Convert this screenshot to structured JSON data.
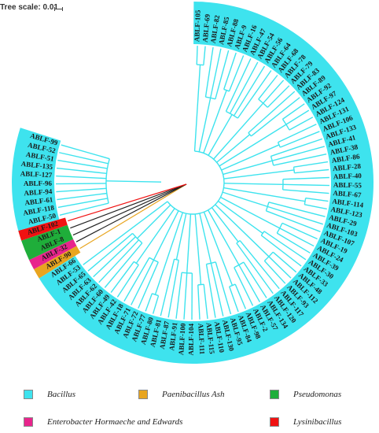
{
  "header": {
    "tree_scale_label": "Tree scale: 0.01"
  },
  "colors": {
    "Bacillus": "#3ee3ee",
    "Paenibacillus Ash": "#e8a51f",
    "Pseudomonas": "#1fae3a",
    "Enterobacter Hormaeche and Edwards": "#e8248c",
    "Lysinibacillus": "#f01212"
  },
  "leaves": [
    {
      "label": "ABLF-105",
      "group": "Bacillus"
    },
    {
      "label": "ABLF-69",
      "group": "Bacillus"
    },
    {
      "label": "ABLF-82",
      "group": "Bacillus"
    },
    {
      "label": "ABLF-85",
      "group": "Bacillus"
    },
    {
      "label": "ABLF-88",
      "group": "Bacillus"
    },
    {
      "label": "ABLF-9",
      "group": "Bacillus"
    },
    {
      "label": "ABLF-16",
      "group": "Bacillus"
    },
    {
      "label": "ABLF-47",
      "group": "Bacillus"
    },
    {
      "label": "ABLF-54",
      "group": "Bacillus"
    },
    {
      "label": "ABLF-56",
      "group": "Bacillus"
    },
    {
      "label": "ABLF-64",
      "group": "Bacillus"
    },
    {
      "label": "ABLF-68",
      "group": "Bacillus"
    },
    {
      "label": "ABLF-78",
      "group": "Bacillus"
    },
    {
      "label": "ABLF-79",
      "group": "Bacillus"
    },
    {
      "label": "ABLF-83",
      "group": "Bacillus"
    },
    {
      "label": "ABLF-89",
      "group": "Bacillus"
    },
    {
      "label": "ABLF-92",
      "group": "Bacillus"
    },
    {
      "label": "ABLF-97",
      "group": "Bacillus"
    },
    {
      "label": "ABLF-124",
      "group": "Bacillus"
    },
    {
      "label": "ABLF-131",
      "group": "Bacillus"
    },
    {
      "label": "ABLF-106",
      "group": "Bacillus"
    },
    {
      "label": "ABLF-133",
      "group": "Bacillus"
    },
    {
      "label": "ABLF-41",
      "group": "Bacillus"
    },
    {
      "label": "ABLF-38",
      "group": "Bacillus"
    },
    {
      "label": "ABLF-86",
      "group": "Bacillus"
    },
    {
      "label": "ABLF-28",
      "group": "Bacillus"
    },
    {
      "label": "ABLF-40",
      "group": "Bacillus"
    },
    {
      "label": "ABLF-55",
      "group": "Bacillus"
    },
    {
      "label": "ABLF-67",
      "group": "Bacillus"
    },
    {
      "label": "ABLF-114",
      "group": "Bacillus"
    },
    {
      "label": "ABLF-123",
      "group": "Bacillus"
    },
    {
      "label": "ABLF-29",
      "group": "Bacillus"
    },
    {
      "label": "ABLF-103",
      "group": "Bacillus"
    },
    {
      "label": "ABLF-107",
      "group": "Bacillus"
    },
    {
      "label": "ABLF-19",
      "group": "Bacillus"
    },
    {
      "label": "ABLF-24",
      "group": "Bacillus"
    },
    {
      "label": "ABLF-39",
      "group": "Bacillus"
    },
    {
      "label": "ABLF-30",
      "group": "Bacillus"
    },
    {
      "label": "ABLF-33",
      "group": "Bacillus"
    },
    {
      "label": "ABLF-48",
      "group": "Bacillus"
    },
    {
      "label": "ABLF-112",
      "group": "Bacillus"
    },
    {
      "label": "ABLF-93",
      "group": "Bacillus"
    },
    {
      "label": "ABLF-117",
      "group": "Bacillus"
    },
    {
      "label": "ABLF-120",
      "group": "Bacillus"
    },
    {
      "label": "ABLF-134",
      "group": "Bacillus"
    },
    {
      "label": "ABLF-57",
      "group": "Bacillus"
    },
    {
      "label": "ABLF-2",
      "group": "Bacillus"
    },
    {
      "label": "ABLF-98",
      "group": "Bacillus"
    },
    {
      "label": "ABLF-84",
      "group": "Bacillus"
    },
    {
      "label": "ABLF-95",
      "group": "Bacillus"
    },
    {
      "label": "ABLF-130",
      "group": "Bacillus"
    },
    {
      "label": "ABLF-110",
      "group": "Bacillus"
    },
    {
      "label": "ABLF-115",
      "group": "Bacillus"
    },
    {
      "label": "ABLF-111",
      "group": "Bacillus"
    },
    {
      "label": "ABLF-104",
      "group": "Bacillus"
    },
    {
      "label": "ABLF-100",
      "group": "Bacillus"
    },
    {
      "label": "ABLF-91",
      "group": "Bacillus"
    },
    {
      "label": "ABLF-87",
      "group": "Bacillus"
    },
    {
      "label": "ABLF-81",
      "group": "Bacillus"
    },
    {
      "label": "ABLF-80",
      "group": "Bacillus"
    },
    {
      "label": "ABLF-77",
      "group": "Bacillus"
    },
    {
      "label": "ABLF-72",
      "group": "Bacillus"
    },
    {
      "label": "ABLF-71",
      "group": "Bacillus"
    },
    {
      "label": "ABLF-18",
      "group": "Bacillus"
    },
    {
      "label": "ABLF-42",
      "group": "Bacillus"
    },
    {
      "label": "ABLF-49",
      "group": "Bacillus"
    },
    {
      "label": "ABLF-60",
      "group": "Bacillus"
    },
    {
      "label": "ABLF-62",
      "group": "Bacillus"
    },
    {
      "label": "ABLF-63",
      "group": "Bacillus"
    },
    {
      "label": "ABLF-65",
      "group": "Bacillus"
    },
    {
      "label": "ABLF-53",
      "group": "Bacillus"
    },
    {
      "label": "ABLF-66",
      "group": "Bacillus"
    },
    {
      "label": "ABLF-90",
      "group": "Paenibacillus Ash"
    },
    {
      "label": "ABLF-32",
      "group": "Enterobacter Hormaeche and Edwards"
    },
    {
      "label": "ABLF-8",
      "group": "Pseudomonas"
    },
    {
      "label": "ABLF-1",
      "group": "Pseudomonas"
    },
    {
      "label": "ABLF-102",
      "group": "Lysinibacillus"
    },
    {
      "label": "ABLF-50",
      "group": "Bacillus"
    },
    {
      "label": "ABLF-118",
      "group": "Bacillus"
    },
    {
      "label": "ABLF-61",
      "group": "Bacillus"
    },
    {
      "label": "ABLF-94",
      "group": "Bacillus"
    },
    {
      "label": "ABLF-96",
      "group": "Bacillus"
    },
    {
      "label": "ABLF-127",
      "group": "Bacillus"
    },
    {
      "label": "ABLF-135",
      "group": "Bacillus"
    },
    {
      "label": "ABLF-51",
      "group": "Bacillus"
    },
    {
      "label": "ABLF-52",
      "group": "Bacillus"
    },
    {
      "label": "ABLF-99",
      "group": "Bacillus"
    }
  ],
  "legend": [
    {
      "label": "Bacillus",
      "group": "Bacillus"
    },
    {
      "label": "Paenibacillus Ash",
      "group": "Paenibacillus Ash"
    },
    {
      "label": "Pseudomonas",
      "group": "Pseudomonas"
    },
    {
      "label": "Enterobacter Hormaeche and Edwards",
      "group": "Enterobacter Hormaeche and Edwards"
    },
    {
      "label": "Lysinibacillus",
      "group": "Lysinibacillus"
    }
  ]
}
